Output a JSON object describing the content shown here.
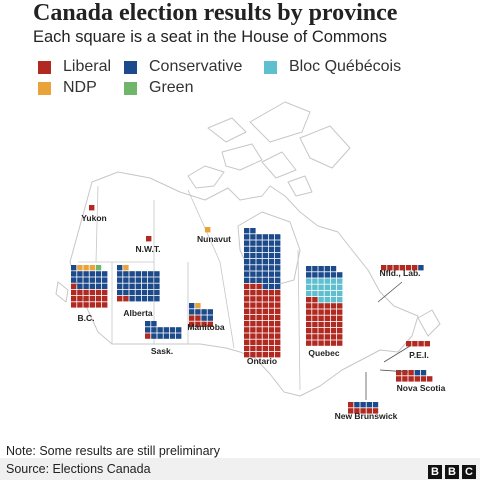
{
  "title": "Canada election results by province",
  "subtitle": "Each square is a seat in the House of Commons",
  "legend": [
    {
      "label": "Liberal",
      "color": "#b12a22"
    },
    {
      "label": "Conservative",
      "color": "#1c4a8a"
    },
    {
      "label": "Bloc Québécois",
      "color": "#5fbfcf"
    },
    {
      "label": "NDP",
      "color": "#e8a33a"
    },
    {
      "label": "Green",
      "color": "#6fb56a"
    }
  ],
  "colors": {
    "map_fill": "#ffffff",
    "map_stroke": "#c7c7c7",
    "leader": "#555555"
  },
  "chart_data": {
    "type": "waffle",
    "title": "Canada election results by province",
    "subtitle": "Each square is a seat in the House of Commons",
    "regions": [
      {
        "name": "Yukon",
        "seats": {
          "Liberal": 1
        }
      },
      {
        "name": "N.W.T.",
        "seats": {
          "Liberal": 1
        }
      },
      {
        "name": "Nunavut",
        "seats": {
          "NDP": 1
        }
      },
      {
        "name": "B.C.",
        "seats": {
          "Liberal": 19,
          "Conservative": 18,
          "NDP": 3,
          "Green": 1
        }
      },
      {
        "name": "Alberta",
        "seats": {
          "Conservative": 34,
          "Liberal": 2,
          "NDP": 1
        }
      },
      {
        "name": "Sask.",
        "seats": {
          "Conservative": 13,
          "Liberal": 1
        }
      },
      {
        "name": "Manitoba",
        "seats": {
          "Conservative": 7,
          "Liberal": 6,
          "NDP": 1
        }
      },
      {
        "name": "Ontario",
        "seats": {
          "Liberal": 69,
          "Conservative": 53
        }
      },
      {
        "name": "Quebec",
        "seats": {
          "Liberal": 44,
          "Bloc Québécois": 22,
          "Conservative": 11
        }
      },
      {
        "name": "Nfld., Lab.",
        "seats": {
          "Liberal": 6,
          "Conservative": 1
        }
      },
      {
        "name": "P.E.I.",
        "seats": {
          "Liberal": 4
        }
      },
      {
        "name": "Nova Scotia",
        "seats": {
          "Liberal": 9,
          "Conservative": 2
        }
      },
      {
        "name": "New Brunswick",
        "seats": {
          "Liberal": 6,
          "Conservative": 4
        }
      }
    ]
  },
  "note": "Note: Some results are still preliminary",
  "source": "Source: Elections Canada",
  "logo": [
    "B",
    "B",
    "C"
  ]
}
